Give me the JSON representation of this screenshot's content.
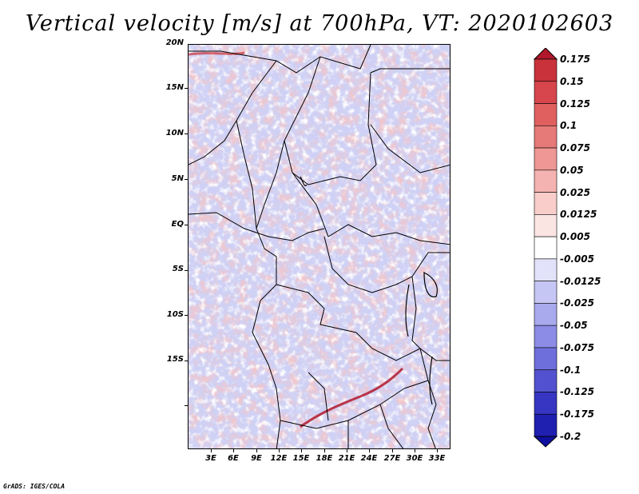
{
  "title": "Vertical velocity [m/s] at 700hPa, VT: 2020102603",
  "footer": "GrADS: IGES/COLA",
  "map": {
    "variable": "Vertical velocity",
    "units": "m/s",
    "level": "700hPa",
    "valid_time": "2020102603",
    "lat_labels": [
      "20N",
      "15N",
      "10N",
      "5N",
      "EQ",
      "5S",
      "10S",
      "15S"
    ],
    "lon_labels": [
      "3E",
      "6E",
      "9E",
      "12E",
      "15E",
      "18E",
      "21E",
      "24E",
      "27E",
      "30E",
      "33E"
    ]
  },
  "colorbar": {
    "labels": [
      "0.175",
      "0.15",
      "0.125",
      "0.1",
      "0.075",
      "0.05",
      "0.025",
      "0.0125",
      "0.005",
      "-0.005",
      "-0.0125",
      "-0.025",
      "-0.05",
      "-0.075",
      "-0.1",
      "-0.125",
      "-0.175",
      "-0.2"
    ],
    "colors": [
      "#b2182b",
      "#c9323a",
      "#d6464c",
      "#e06060",
      "#e67a78",
      "#ee9794",
      "#f4b3b0",
      "#f8cdca",
      "#fbe5e3",
      "#ffffff",
      "#e2e2fb",
      "#c6c6f4",
      "#a9a9ee",
      "#8c8ce6",
      "#6f6fdc",
      "#5252d0",
      "#3636c2",
      "#1f1fb0",
      "#1010a0"
    ]
  }
}
